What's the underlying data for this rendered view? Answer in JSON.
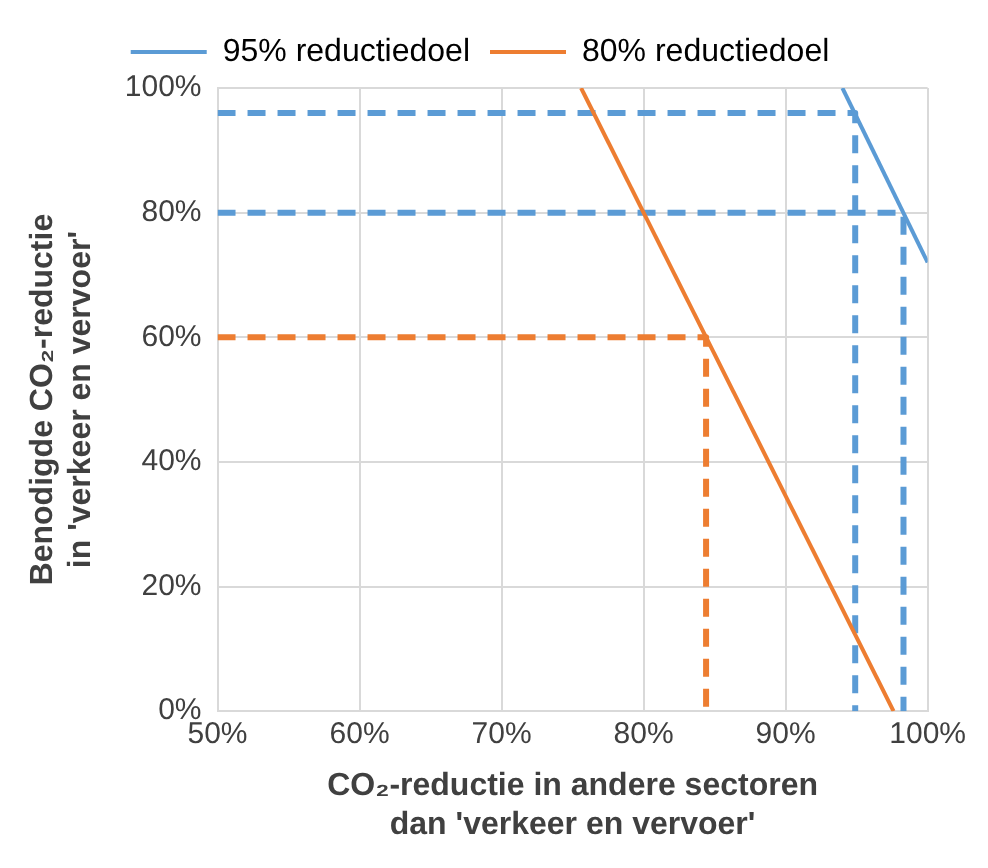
{
  "chart_data": {
    "type": "line",
    "xlabel": "CO₂-reductie in andere sectoren\ndan 'verkeer en vervoer'",
    "ylabel": "Benodigde CO₂-reductie\nin 'verkeer en vervoer'",
    "series": [
      {
        "name": "95% reductiedoel",
        "color": "#5b9bd5",
        "x": [
          94,
          100
        ],
        "values": [
          100,
          72
        ]
      },
      {
        "name": "80% reductiedoel",
        "color": "#ed7d31",
        "x": [
          75.6,
          97.6
        ],
        "values": [
          100,
          0
        ]
      },
      {
        "color": "#5b9bd5",
        "line_style": "dashed",
        "x": [
          50,
          94.9,
          94.9
        ],
        "values": [
          96,
          96,
          0
        ]
      },
      {
        "color": "#5b9bd5",
        "line_style": "dashed",
        "x": [
          50,
          98.3,
          98.3
        ],
        "values": [
          80,
          80,
          0
        ]
      },
      {
        "color": "#ed7d31",
        "line_style": "dashed",
        "x": [
          50,
          84.4,
          84.4
        ],
        "values": [
          60,
          60,
          0
        ]
      }
    ],
    "xlim": [
      50,
      100
    ],
    "ylim": [
      0,
      100
    ],
    "xticks": [
      {
        "value": 50,
        "label": "50%"
      },
      {
        "value": 60,
        "label": "60%"
      },
      {
        "value": 70,
        "label": "70%"
      },
      {
        "value": 80,
        "label": "80%"
      },
      {
        "value": 90,
        "label": "90%"
      },
      {
        "value": 100,
        "label": "100%"
      }
    ],
    "yticks": [
      {
        "value": 0,
        "label": "0%"
      },
      {
        "value": 20,
        "label": "20%"
      },
      {
        "value": 40,
        "label": "40%"
      },
      {
        "value": 60,
        "label": "60%"
      },
      {
        "value": 80,
        "label": "80%"
      },
      {
        "value": 100,
        "label": "100%"
      }
    ],
    "grid": true,
    "legend": "top",
    "marker": "none",
    "line_style": "solid"
  }
}
